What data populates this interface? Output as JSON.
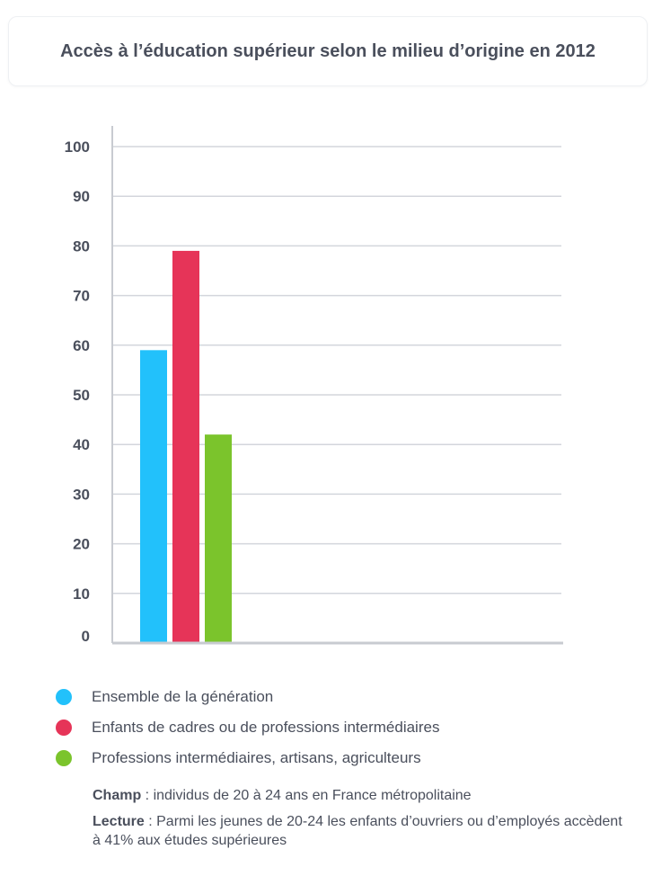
{
  "title": "Accès à l’éducation supérieur selon le milieu d’origine en 2012",
  "chart_data": {
    "type": "bar",
    "categories": [
      ""
    ],
    "series": [
      {
        "name": "Ensemble de la génération",
        "values": [
          59
        ],
        "color": "#22c1fb"
      },
      {
        "name": "Enfants de cadres ou de professions intermédiaires",
        "values": [
          79
        ],
        "color": "#e63458"
      },
      {
        "name": "Professions intermédiaires, artisans, agriculteurs",
        "values": [
          42
        ],
        "color": "#7bc42c"
      }
    ],
    "yticks": [
      "0",
      "10",
      "20",
      "30",
      "40",
      "50",
      "60",
      "70",
      "80",
      "90",
      "100"
    ],
    "ylim": [
      0,
      100
    ],
    "grid": true,
    "legend_position": "bottom"
  },
  "notes": [
    {
      "label": "Champ",
      "text": " : individus de 20 à 24 ans en France métropolitaine"
    },
    {
      "label": "Lecture",
      "text": " : Parmi les jeunes de 20-24 les enfants d’ouvriers ou d’employés accèdent à 41% aux études supérieures"
    }
  ]
}
